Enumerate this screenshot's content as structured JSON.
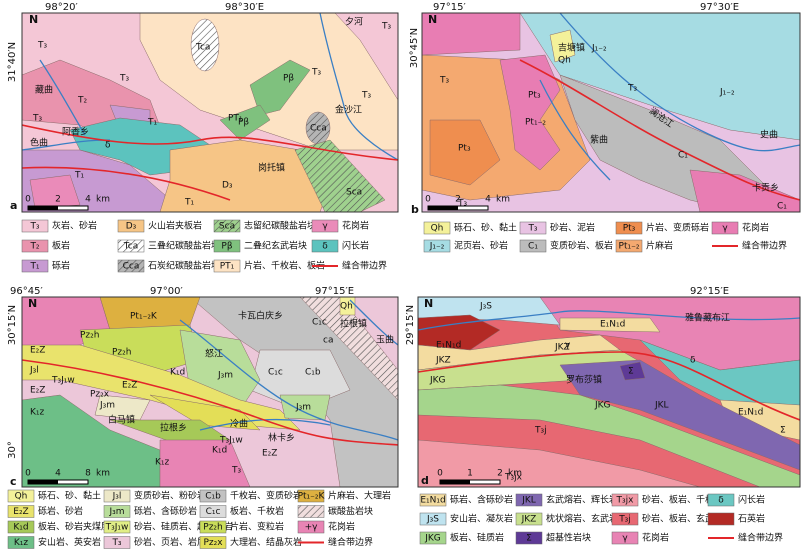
{
  "panels": [
    {
      "label": "a",
      "north": "N",
      "top_ticks": [
        "98°20′",
        "98°30′E"
      ],
      "left_ticks": [
        "31°40′N"
      ],
      "scale": [
        "0",
        "2",
        "4",
        "km"
      ],
      "map_labels": [
        "T₃",
        "T₃",
        "T₃",
        "藏曲",
        "T₂",
        "T₁",
        "阿香乡",
        "色曲",
        "δ",
        "T₁",
        "T₁",
        "Tca",
        "PT₁",
        "Pβ",
        "Pβ",
        "T₃",
        "T₃",
        "夕河",
        "金沙江",
        "Cca",
        "岗托镇",
        "D₃",
        "Sca",
        "T₃"
      ],
      "legend": [
        {
          "code": "T₃",
          "text": "灰岩、砂岩",
          "color": "#f4c7d6",
          "kind": "fill"
        },
        {
          "code": "T₂",
          "text": "板岩",
          "color": "#e993ad",
          "kind": "fill"
        },
        {
          "code": "T₁",
          "text": "砾岩",
          "color": "#c79ad2",
          "kind": "fill"
        },
        {
          "code": "D₃",
          "text": "火山岩夹板岩",
          "color": "#f6c586",
          "kind": "fill"
        },
        {
          "code": "Tca",
          "text": "三叠纪碳酸盐岩块",
          "color": "#ffffff",
          "kind": "hatch"
        },
        {
          "code": "Cca",
          "text": "石炭纪碳酸盐岩块",
          "color": "#b5b5b5",
          "kind": "hatch"
        },
        {
          "code": "Sca",
          "text": "志留纪碳酸盐岩块",
          "color": "#9fd18e",
          "kind": "hatch"
        },
        {
          "code": "Pβ",
          "text": "二叠纪玄武岩块",
          "color": "#7fc17e",
          "kind": "fill"
        },
        {
          "code": "PT₁",
          "text": "片岩、千枚岩、板岩",
          "color": "#fde3c4",
          "kind": "fill"
        },
        {
          "code": "γ",
          "text": "花岗岩",
          "color": "#ea8bb9",
          "kind": "fill"
        },
        {
          "code": "δ",
          "text": "闪长岩",
          "color": "#5cc3be",
          "kind": "fill"
        },
        {
          "text": "缝合带边界",
          "color": "#e3262a",
          "kind": "line"
        }
      ]
    },
    {
      "label": "b",
      "north": "N",
      "top_ticks": [
        "97°15′",
        "97°30′E"
      ],
      "left_ticks": [
        "30°45′N"
      ],
      "scale": [
        "0",
        "2",
        "4",
        "km"
      ],
      "map_labels": [
        "吉塘镇",
        "Qh",
        "J₁₋₂",
        "T₃",
        "Pt₃",
        "Pt₁₋₂",
        "Pt₃",
        "澜沧江",
        "紫曲",
        "J₁₋₂",
        "C₁",
        "史曲",
        "卡贡乡",
        "C₁",
        "T₃",
        "T₃"
      ],
      "legend": [
        {
          "code": "Qh",
          "text": "砾石、砂、黏土",
          "color": "#f4f19a",
          "kind": "fill"
        },
        {
          "code": "J₁₋₂",
          "text": "泥页岩、砂岩",
          "color": "#a6dce3",
          "kind": "fill"
        },
        {
          "code": "T₃",
          "text": "砂岩、泥岩",
          "color": "#e8c3e3",
          "kind": "fill"
        },
        {
          "code": "C₁",
          "text": "变质砂岩、板岩",
          "color": "#bcbcbc",
          "kind": "fill"
        },
        {
          "code": "Pt₃",
          "text": "片岩、变质砾岩",
          "color": "#ef8e4f",
          "kind": "fill"
        },
        {
          "code": "Pt₁₋₂",
          "text": "片麻岩",
          "color": "#f4a970",
          "kind": "fill"
        },
        {
          "code": "γ",
          "text": "花岗岩",
          "color": "#e87db3",
          "kind": "fill"
        },
        {
          "text": "缝合带边界",
          "color": "#e3262a",
          "kind": "line"
        }
      ]
    },
    {
      "label": "c",
      "north": "N",
      "top_ticks": [
        "96°45′",
        "97°00′",
        "97°15′E"
      ],
      "left_ticks": [
        "30°15′N",
        "30°"
      ],
      "scale": [
        "0",
        "4",
        "8",
        "km"
      ],
      "map_labels": [
        "Pt₁₋₂K",
        "Pz₂h",
        "E₂Z",
        "J₃l",
        "T₃J₁w",
        "E₂Z",
        "Pz₂x",
        "Pz₂h",
        "E₂Z",
        "K₁d",
        "J₃m",
        "J₃m",
        "怒江",
        "卡瓦白庆乡",
        "C₁c",
        "C₁b",
        "C₁c",
        "拉根镇",
        "玉曲",
        "Qh",
        "ca",
        "J₃m",
        "冷曲",
        "白马镇",
        "拉根乡",
        "T₃J₁w",
        "林卡乡",
        "E₂Z",
        "K₁z",
        "K₁z",
        "K₁d",
        "T₃"
      ],
      "legend": [
        {
          "code": "Qh",
          "text": "砾石、砂、黏土",
          "color": "#f4f19a",
          "kind": "fill"
        },
        {
          "code": "E₂Z",
          "text": "砾岩、砂岩",
          "color": "#e9e36c",
          "kind": "fill"
        },
        {
          "code": "K₁d",
          "text": "板岩、砂岩夹煤层",
          "color": "#a6c958",
          "kind": "fill"
        },
        {
          "code": "K₁z",
          "text": "安山岩、英安岩",
          "color": "#6dbf87",
          "kind": "fill"
        },
        {
          "code": "J₃l",
          "text": "变质砂岩、粉砂岩",
          "color": "#ede8c8",
          "kind": "fill"
        },
        {
          "code": "J₃m",
          "text": "砾岩、含砾砂岩",
          "color": "#b8dd9a",
          "kind": "fill"
        },
        {
          "code": "T₃J₁w",
          "text": "砂岩、硅质岩、超基性岩",
          "color": "#e1ee86",
          "kind": "fill"
        },
        {
          "code": "T₃",
          "text": "砂岩、页岩、岩屑",
          "color": "#ecc7d9",
          "kind": "fill"
        },
        {
          "code": "C₁b",
          "text": "千枚岩、变质砂岩",
          "color": "#c2c2c2",
          "kind": "fill"
        },
        {
          "code": "C₁c",
          "text": "板岩、千枚岩",
          "color": "#dcdcdc",
          "kind": "fill"
        },
        {
          "code": "Pz₂h",
          "text": "片岩、变粒岩",
          "color": "#c9dd5a",
          "kind": "fill"
        },
        {
          "code": "Pz₂x",
          "text": "大理岩、结晶灰岩",
          "color": "#e3de57",
          "kind": "fill"
        },
        {
          "code": "Pt₁₋₂K",
          "text": "片麻岩、大理岩",
          "color": "#ddb040",
          "kind": "fill"
        },
        {
          "text": "碳酸盐岩块",
          "color": "#f1dede",
          "kind": "hatch"
        },
        {
          "code": "+γ",
          "text": "花岗岩",
          "color": "#e884b4",
          "kind": "fill"
        },
        {
          "text": "缝合带边界",
          "color": "#e3262a",
          "kind": "line"
        }
      ]
    },
    {
      "label": "d",
      "north": "N",
      "top_ticks": [
        "92°15′E"
      ],
      "left_ticks": [
        "29°15′N"
      ],
      "scale": [
        "0",
        "1",
        "2",
        "km"
      ],
      "map_labels": [
        "J₃S",
        "γ",
        "雅鲁藏布江",
        "E₁N₁d",
        "JKZ",
        "JKZ",
        "E₁N₁d",
        "JKG",
        "罗布莎镇",
        "Σ",
        "JKG",
        "JKL",
        "δ",
        "E₁N₁d",
        "Σ",
        "T₃j",
        "T₃jx"
      ],
      "legend": [
        {
          "code": "E₁N₁d",
          "text": "砾岩、含砾砂岩",
          "color": "#f3dca0",
          "kind": "fill"
        },
        {
          "code": "J₃S",
          "text": "安山岩、凝灰岩",
          "color": "#bfe3ef",
          "kind": "fill"
        },
        {
          "code": "JKG",
          "text": "板岩、硅质岩",
          "color": "#a5d58c",
          "kind": "fill"
        },
        {
          "code": "JKL",
          "text": "玄武熔岩、辉长岩",
          "color": "#7f67b0",
          "kind": "fill"
        },
        {
          "code": "JKZ",
          "text": "枕状熔岩、玄武岩",
          "color": "#c8e08e",
          "kind": "fill"
        },
        {
          "code": "Σ",
          "text": "超基性岩块",
          "color": "#5e3a96",
          "kind": "fill"
        },
        {
          "code": "T₃jx",
          "text": "砂岩、板岩、千枚岩",
          "color": "#f19aa6",
          "kind": "fill"
        },
        {
          "code": "T₃j",
          "text": "砂岩、板岩、玄武岩",
          "color": "#e76872",
          "kind": "fill"
        },
        {
          "code": "γ",
          "text": "花岗岩",
          "color": "#e884b4",
          "kind": "fill"
        },
        {
          "code": "δ",
          "text": "闪长岩",
          "color": "#6bc7c2",
          "kind": "fill"
        },
        {
          "text": "石英岩",
          "color": "#b32a25",
          "kind": "fill"
        },
        {
          "text": "缝合带边界",
          "color": "#e3262a",
          "kind": "line"
        }
      ]
    }
  ]
}
